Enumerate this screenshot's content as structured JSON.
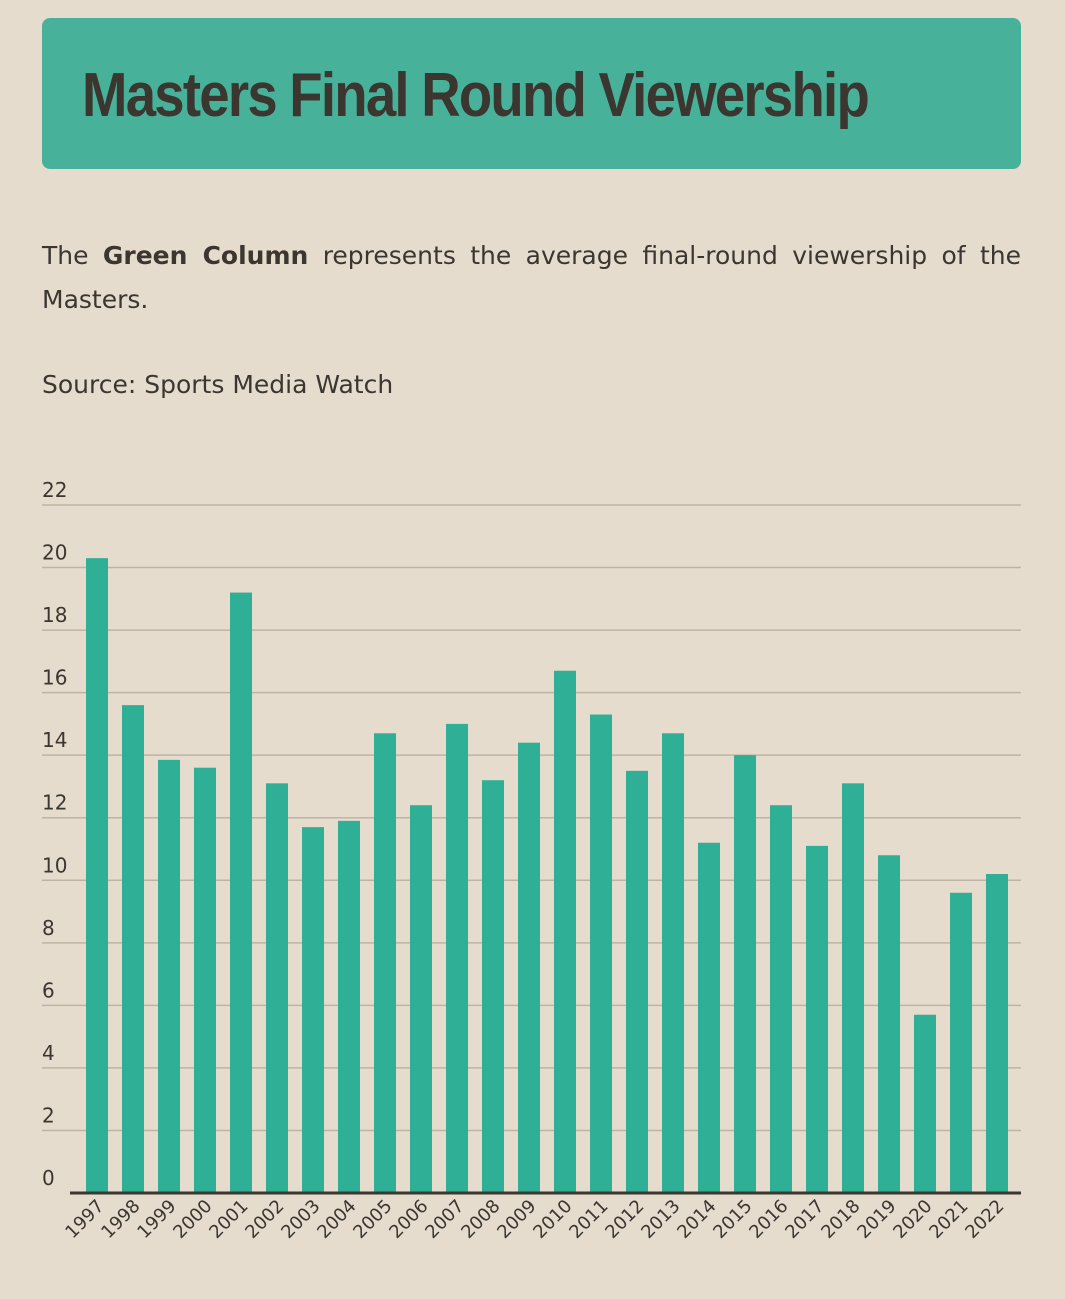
{
  "header": {
    "title": "Masters Final Round Viewership"
  },
  "description": {
    "pre": "The ",
    "bold": "Green Column",
    "post": " represents the average final-round viewership of the Masters."
  },
  "source": "Source: Sports Media Watch",
  "chart_data": {
    "type": "bar",
    "title": "Masters Final Round Viewership",
    "xlabel": "",
    "ylabel": "",
    "ylim": [
      0,
      22
    ],
    "yticks": [
      0,
      2,
      4,
      6,
      8,
      10,
      12,
      14,
      16,
      18,
      20,
      22
    ],
    "grid": true,
    "bar_color": "#2fb096",
    "categories": [
      "1997",
      "1998",
      "1999",
      "2000",
      "2001",
      "2002",
      "2003",
      "2004",
      "2005",
      "2006",
      "2007",
      "2008",
      "2009",
      "2010",
      "2011",
      "2012",
      "2013",
      "2014",
      "2015",
      "2016",
      "2017",
      "2018",
      "2019",
      "2020",
      "2021",
      "2022"
    ],
    "values": [
      20.3,
      15.6,
      13.85,
      13.6,
      19.2,
      13.1,
      11.7,
      11.9,
      14.7,
      12.4,
      15.0,
      13.2,
      14.4,
      16.7,
      15.3,
      13.5,
      14.7,
      11.2,
      14.0,
      12.4,
      11.1,
      13.1,
      10.8,
      5.7,
      9.6,
      10.2
    ]
  }
}
